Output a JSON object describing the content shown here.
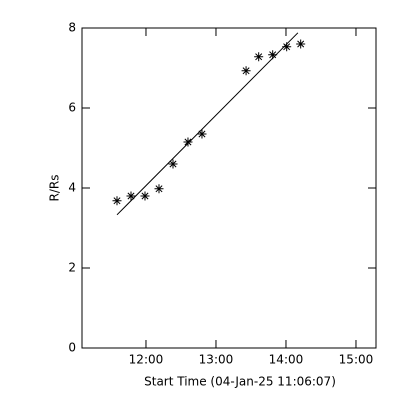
{
  "chart_data": {
    "type": "scatter",
    "xlabel": "Start Time (04-Jan-25 11:06:07)",
    "ylabel": "R/Rs",
    "x": [
      11.586,
      11.786,
      11.986,
      12.186,
      12.386,
      12.6,
      12.8,
      13.43,
      13.61,
      13.81,
      14.01,
      14.21
    ],
    "values": [
      3.68,
      3.8,
      3.8,
      3.98,
      4.6,
      5.15,
      5.35,
      6.93,
      7.28,
      7.33,
      7.53,
      7.6
    ],
    "fit": {
      "x": [
        11.586,
        14.17
      ],
      "y": [
        3.33,
        7.88
      ]
    },
    "color": "#000000",
    "xlim": [
      11.086,
      15.286
    ],
    "ylim": [
      0,
      8
    ],
    "xticks": [
      {
        "value": 12,
        "label": "12:00"
      },
      {
        "value": 13,
        "label": "13:00"
      },
      {
        "value": 14,
        "label": "14:00"
      },
      {
        "value": 15,
        "label": "15:00"
      }
    ],
    "yticks": [
      0,
      2,
      4,
      6,
      8
    ]
  }
}
